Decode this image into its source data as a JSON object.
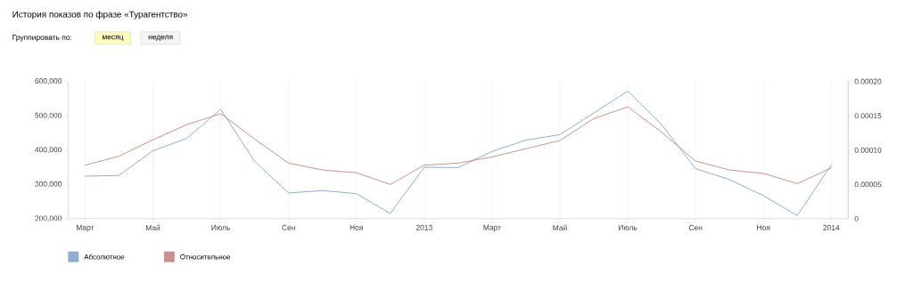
{
  "chart_data": {
    "type": "line",
    "title": "История показов по фразе «Турагентство»",
    "annotations": [
      "Группировать по:",
      "месяц",
      "неделя"
    ],
    "categories": [
      "Март",
      null,
      "Май",
      null,
      "Июль",
      null,
      "Сен",
      null,
      "Ноя",
      null,
      "2013",
      null,
      "Март",
      null,
      "Май",
      null,
      "Июль",
      null,
      "Сен",
      null,
      "Ноя",
      null,
      "2014"
    ],
    "ylim": [
      200000,
      600000
    ],
    "yticks": [
      {
        "value": 200000,
        "label": "200,000"
      },
      {
        "value": 300000,
        "label": "300,000"
      },
      {
        "value": 400000,
        "label": "400,000"
      },
      {
        "value": 500000,
        "label": "500,000"
      },
      {
        "value": 600000,
        "label": "600,000"
      }
    ],
    "y2lim": [
      0,
      0.0002
    ],
    "y2ticks": [
      0,
      {
        "value": 5e-05,
        "label": "0.00005"
      },
      {
        "value": 0.0001,
        "label": "0.00010"
      },
      {
        "value": 0.00015,
        "label": "0.00015"
      },
      {
        "value": 0.0002,
        "label": "0.00020"
      }
    ],
    "grid": "x",
    "legend": "bottom left",
    "marker": "none",
    "line_style": "solid",
    "series": [
      {
        "name": "Абсолютное",
        "color": "#8fadd0",
        "values": [
          324000,
          326000,
          398000,
          434000,
          519000,
          367000,
          275000,
          282000,
          273000,
          215000,
          350000,
          349000,
          396000,
          429000,
          445000,
          508000,
          572000,
          474000,
          346000,
          314000,
          267000,
          209000,
          357000
        ]
      },
      {
        "name": "Относительное",
        "color": "#c8928c",
        "axis": "y2",
        "values": [
          7.8e-05,
          9.1e-05,
          0.000115,
          0.000137,
          0.000153,
          0.000116,
          8.1e-05,
          7.1e-05,
          6.7e-05,
          5e-05,
          7.8e-05,
          8.1e-05,
          9e-05,
          0.000102,
          0.000114,
          0.000146,
          0.000163,
          0.000126,
          8.4e-05,
          7.1e-05,
          6.6e-05,
          5.1e-05,
          7.4e-05
        ]
      }
    ]
  }
}
